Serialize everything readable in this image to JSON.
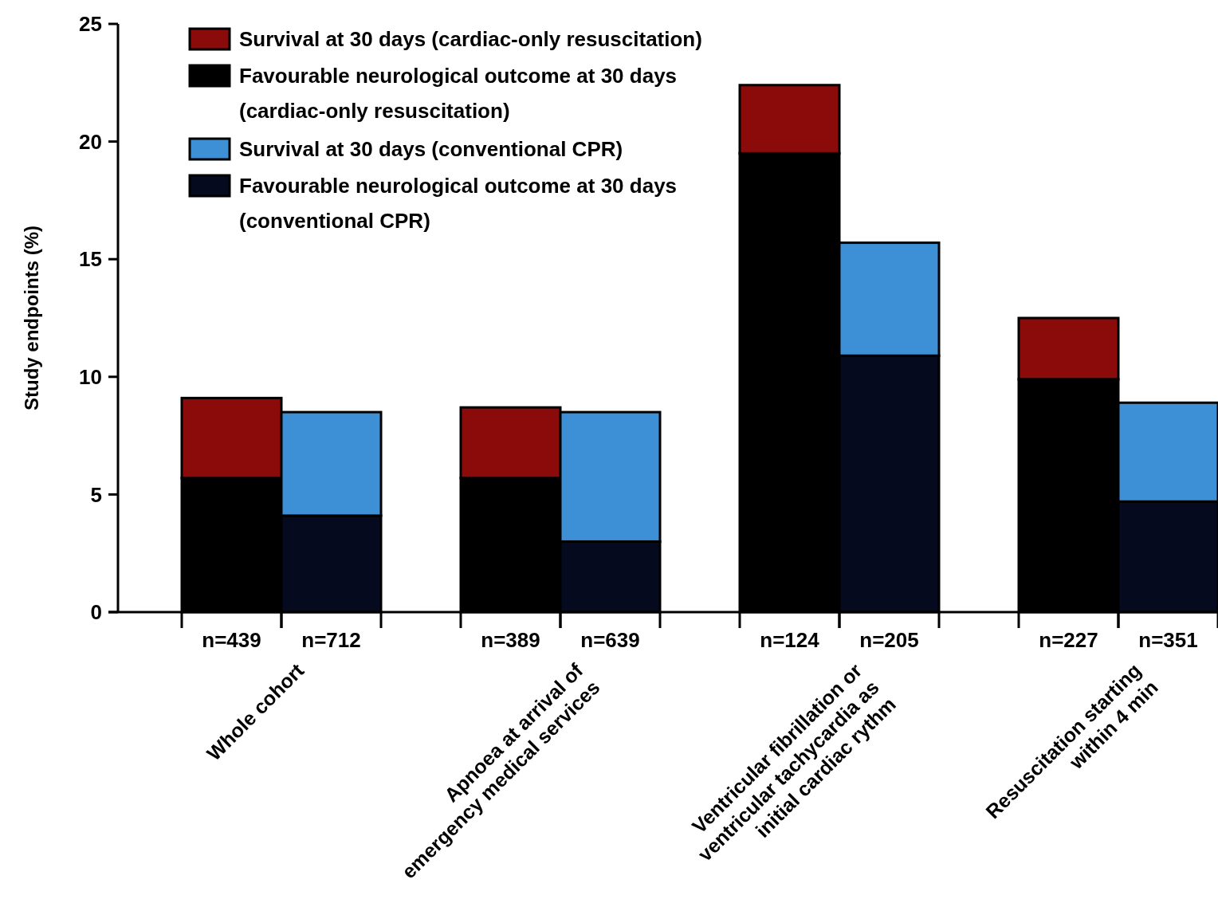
{
  "chart_data": {
    "type": "bar",
    "ylabel": "Study endpoints (%)",
    "categories": [
      "n=439",
      "n=712",
      "n=389",
      "n=639",
      "n=124",
      "n=205",
      "n=227",
      "n=351"
    ],
    "series": [
      {
        "name": "Favourable neurological outcome at 30 days (cardiac-only resuscitation)",
        "color": "#000000",
        "values": [
          5.7,
          null,
          5.7,
          null,
          19.5,
          null,
          9.9,
          null
        ]
      },
      {
        "name": "Survival at 30 days (cardiac-only resuscitation)",
        "color": "#8b0a0a",
        "values": [
          3.4,
          null,
          3.0,
          null,
          2.9,
          null,
          2.6,
          null
        ]
      },
      {
        "name": "Favourable neurological outcome at 30 days (conventional CPR)",
        "color": "#050a1e",
        "values": [
          null,
          4.1,
          null,
          3.0,
          null,
          10.9,
          null,
          4.7
        ]
      },
      {
        "name": "Survival at 30 days (conventional CPR)",
        "color": "#3d8fd6",
        "values": [
          null,
          4.4,
          null,
          5.5,
          null,
          4.8,
          null,
          4.2
        ]
      }
    ],
    "stacked": true,
    "ylim": [
      0,
      25
    ],
    "yticks": [
      0,
      5,
      10,
      15,
      20,
      25
    ],
    "grid": false,
    "legend": "top left",
    "annotations": [
      "Whole cohort",
      "Apnoea at arrival of emergency medical services",
      "Ventricular fibrillation or ventricular tachycardia as initial cardiac rythm",
      "Resuscitation starting within 4 min"
    ]
  }
}
